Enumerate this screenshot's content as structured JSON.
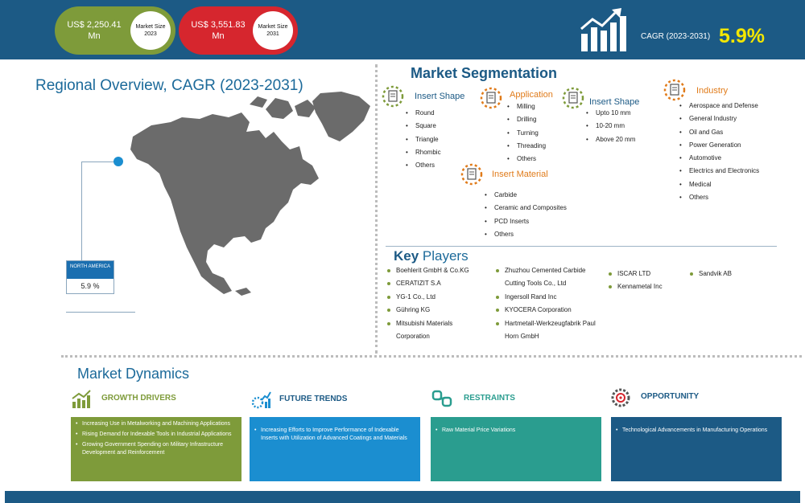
{
  "header": {
    "market_2023": {
      "value": "US$ 2,250.41 Mn",
      "label": "Market Size 2023"
    },
    "market_2031": {
      "value": "US$ 3,551.83 Mn",
      "label": "Market Size 2031"
    },
    "cagr_label": "CAGR (2023-2031)",
    "cagr_value": "5.9%",
    "cagr_icon": "bar-growth-arrow-icon"
  },
  "regional": {
    "title": "Regional Overview, CAGR (2023-2031)",
    "region": "NORTH AMERICA",
    "region_cagr": "5.9 %"
  },
  "segmentation": {
    "title": "Market Segmentation",
    "groups": [
      {
        "title": "Insert Shape",
        "color": "blue",
        "icon": "gear-document-icon",
        "items": [
          "Round",
          "Square",
          "Triangle",
          "Rhombic",
          "Others"
        ]
      },
      {
        "title": "Application",
        "color": "orange",
        "icon": "gear-document-icon",
        "items": [
          "Milling",
          "Drilling",
          "Turning",
          "Threading",
          "Others"
        ]
      },
      {
        "title": "Insert Shape",
        "color": "blue",
        "icon": "gear-document-icon",
        "items": [
          "Upto 10 mm",
          "10-20 mm",
          "Above 20 mm"
        ]
      },
      {
        "title": "Industry",
        "color": "orange",
        "icon": "gear-document-icon",
        "items": [
          "Aerospace and Defense",
          "General Industry",
          "Oil and Gas",
          "Power Generation",
          "Automotive",
          "Electrics and Electronics",
          "Medical",
          "Others"
        ]
      },
      {
        "title": "Insert Material",
        "color": "orange",
        "icon": "gear-document-icon",
        "items": [
          "Carbide",
          "Ceramic and Composites",
          "PCD Inserts",
          "Others"
        ]
      }
    ]
  },
  "key_players": {
    "title_bold": "Key",
    "title_rest": " Players",
    "columns": [
      [
        "Boehlerit GmbH & Co.KG",
        "CERATIZIT S.A",
        "YG-1 Co., Ltd",
        "Gühring KG",
        "Mitsubishi Materials Corporation"
      ],
      [
        "Zhuzhou Cemented Carbide Cutting Tools Co., Ltd",
        "Ingersoll Rand Inc",
        "KYOCERA Corporation",
        "Hartmetall-Werkzeugfabrik Paul Horn GmbH"
      ],
      [
        "ISCAR LTD",
        "Kennametal Inc"
      ],
      [
        "Sandvik AB"
      ]
    ]
  },
  "dynamics": {
    "title": "Market Dynamics",
    "cards": [
      {
        "title": "GROWTH DRIVERS",
        "icon": "growth-chart-icon",
        "color": "#7e9b3a",
        "items": [
          "Increasing Use in Metalworking and Machining Applications",
          "Rising Demand for Indexable Tools in Industrial Applications",
          "Growing Government Spending on Military Infrastructure Development and Reinforcement"
        ]
      },
      {
        "title": "FUTURE TRENDS",
        "icon": "trend-gear-icon",
        "color": "#1b8ed0",
        "items": [
          "Increasing Efforts to Improve Performance of Indexable Inserts with Utilization of Advanced Coatings and Materials"
        ]
      },
      {
        "title": "RESTRAINTS",
        "icon": "chain-link-icon",
        "color": "#2a9d8f",
        "items": [
          "Raw Material Price Variations"
        ]
      },
      {
        "title": "OPPORTUNITY",
        "icon": "gear-target-icon",
        "color": "#1c5a85",
        "items": [
          "Technological Advancements in Manufacturing Operations"
        ]
      }
    ]
  }
}
